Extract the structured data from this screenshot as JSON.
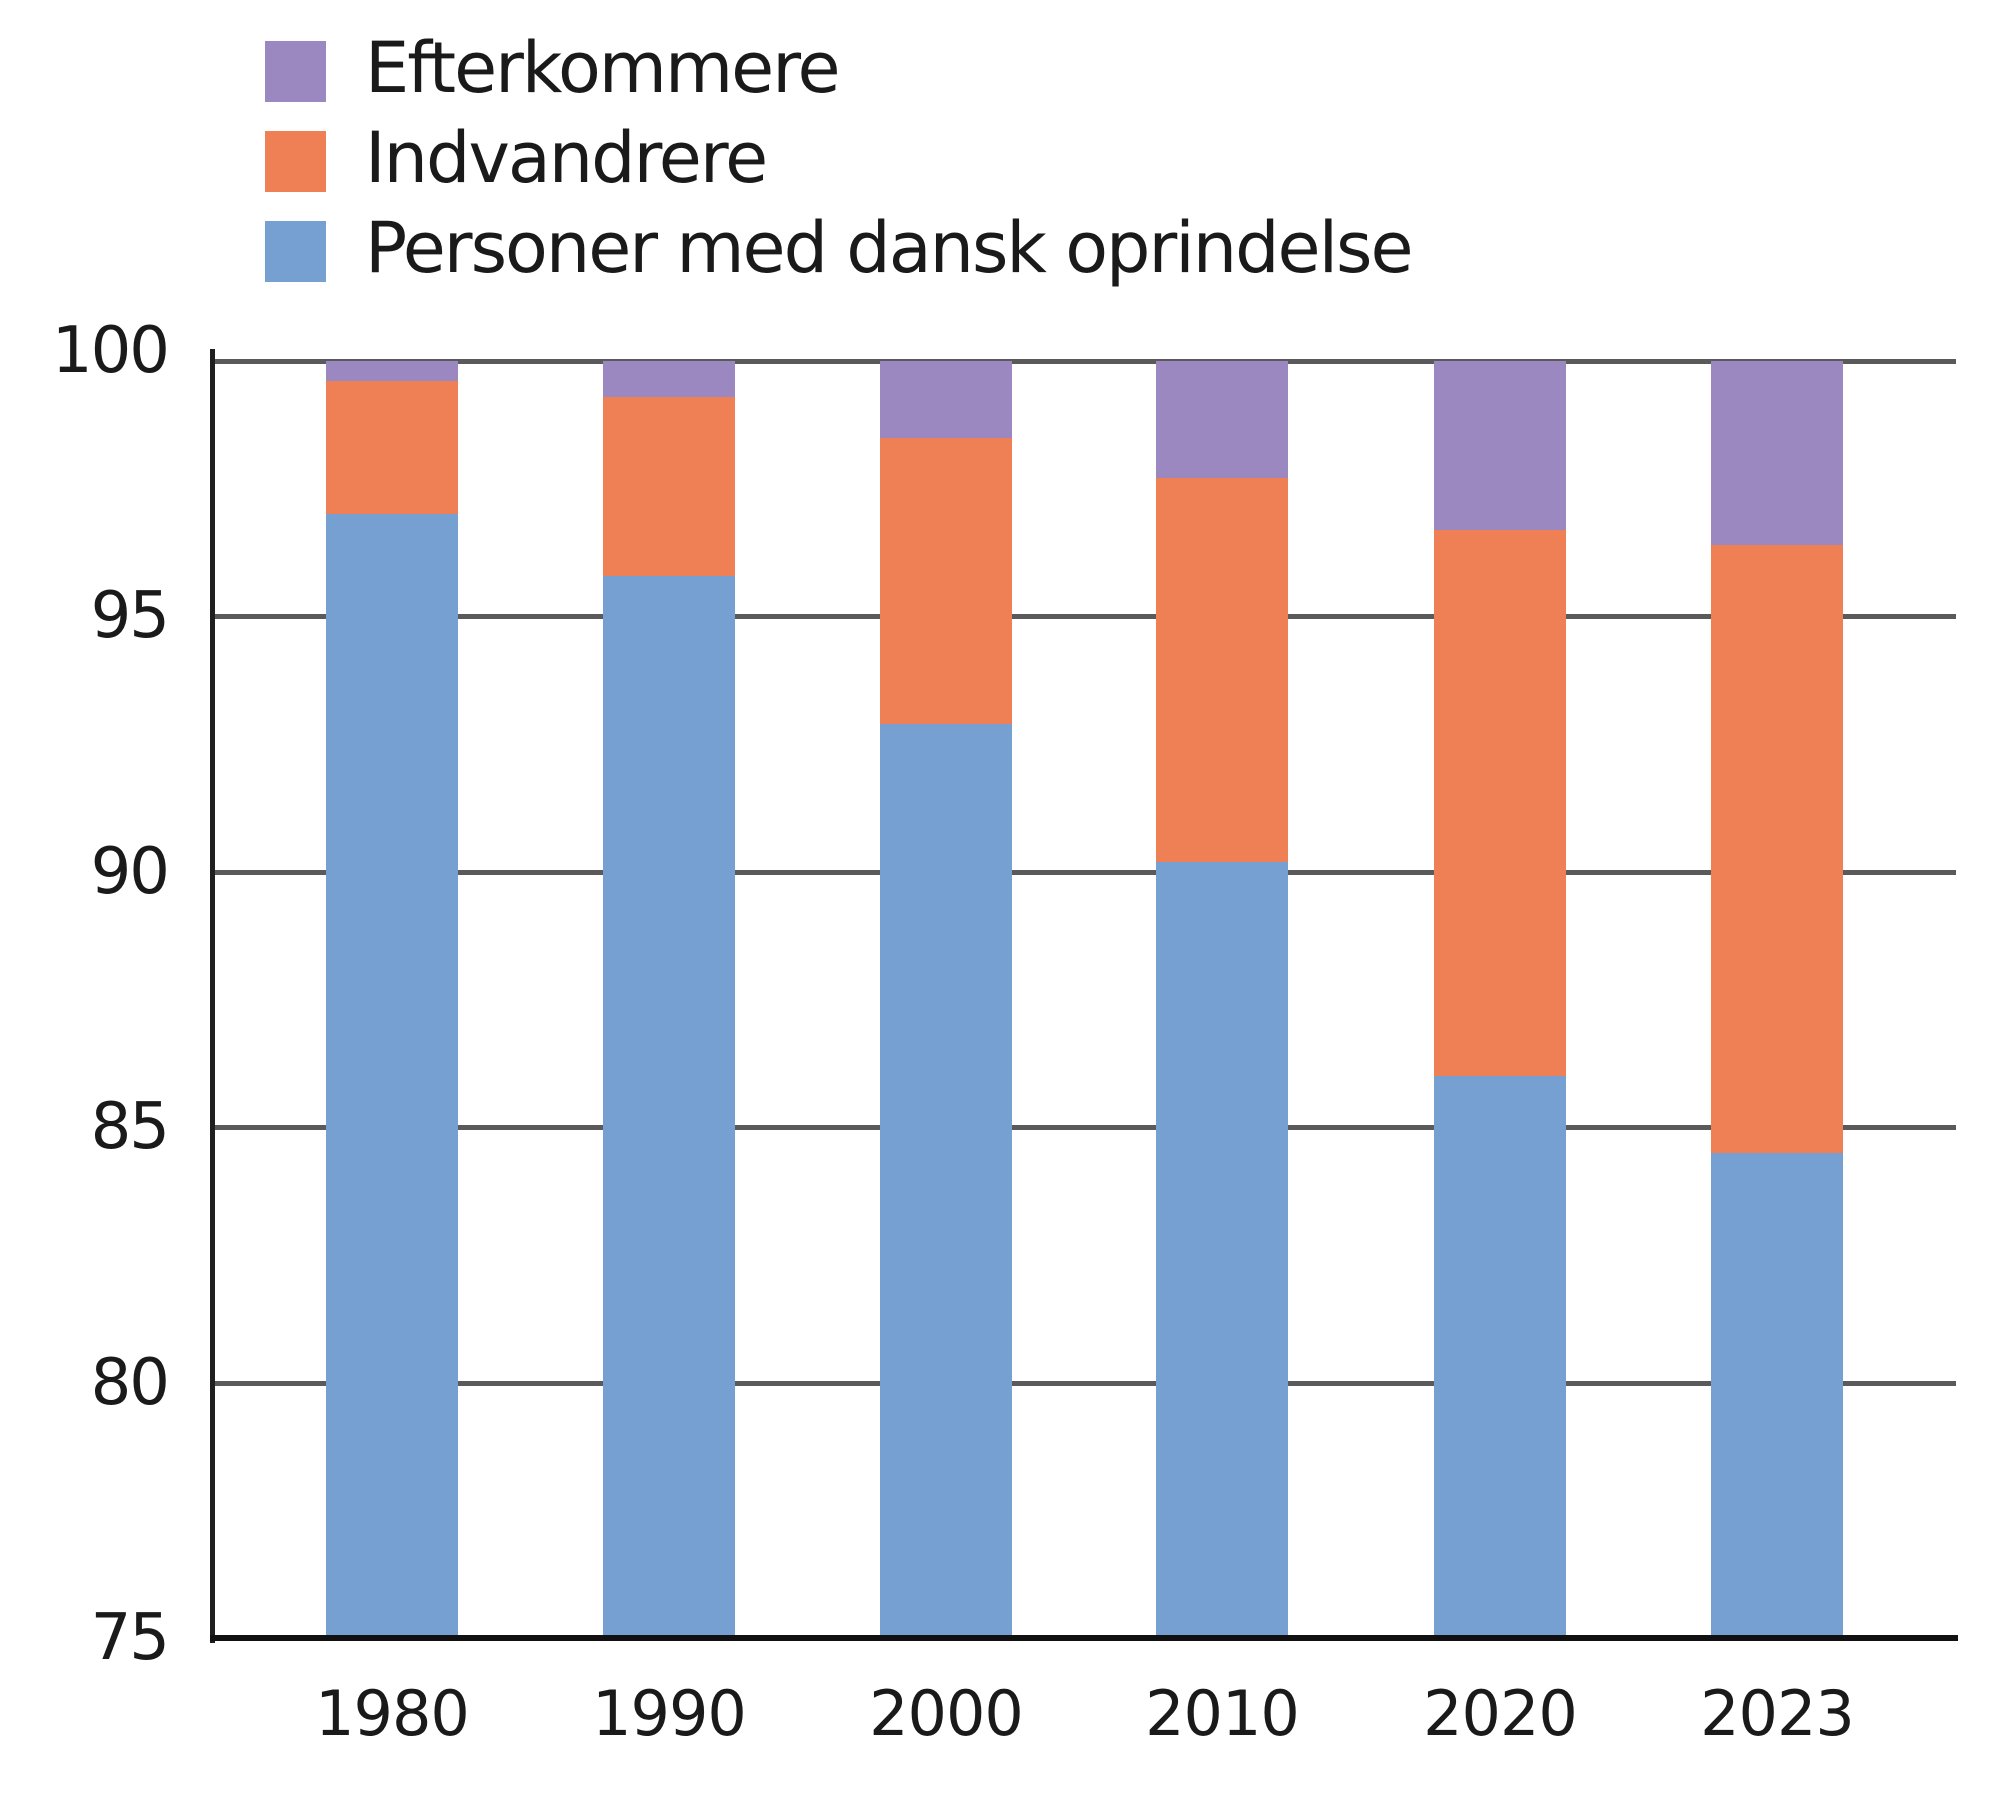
{
  "chart_data": {
    "type": "bar",
    "stacked": true,
    "title": "",
    "xlabel": "",
    "ylabel": "",
    "categories": [
      "1980",
      "1990",
      "2000",
      "2010",
      "2020",
      "2023"
    ],
    "series": [
      {
        "name": "Personer med dansk oprindelse",
        "color": "#769FD2",
        "values": [
          97.0,
          95.8,
          92.9,
          90.2,
          86.0,
          84.5
        ]
      },
      {
        "name": "Indvandrere",
        "color": "#EF7F54",
        "values": [
          2.6,
          3.5,
          5.6,
          7.5,
          10.7,
          11.9
        ]
      },
      {
        "name": "Efterkommere",
        "color": "#9C88C1",
        "values": [
          0.4,
          0.7,
          1.5,
          2.3,
          3.3,
          3.6
        ]
      }
    ],
    "ylim": [
      75,
      100
    ],
    "yticks": [
      "100",
      "95",
      "90",
      "85",
      "80",
      "75"
    ],
    "ytick_values": [
      100,
      95,
      90,
      85,
      80,
      75
    ],
    "grid": true,
    "legend": {
      "position": "top-left",
      "entries": [
        "Efterkommere",
        "Indvandrere",
        "Personer med dansk oprindelse"
      ]
    }
  },
  "legend": {
    "items": [
      {
        "label": "Efterkommere",
        "color": "#9C88C1"
      },
      {
        "label": "Indvandrere",
        "color": "#EF7F54"
      },
      {
        "label": "Personer med dansk oprindelse",
        "color": "#769FD2"
      }
    ]
  }
}
